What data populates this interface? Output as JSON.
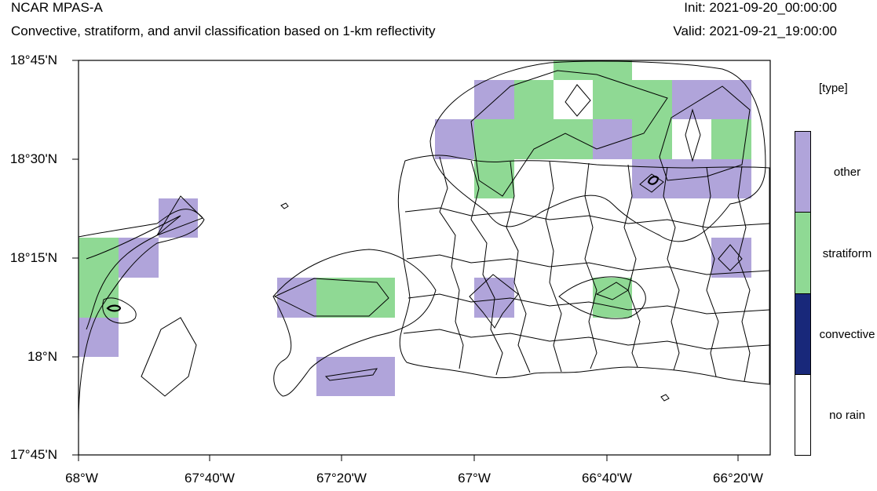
{
  "header": {
    "title": "NCAR MPAS-A",
    "subtitle": "Convective, stratiform, and anvil classification based on 1-km reflectivity",
    "init": "Init: 2021-09-20_00:00:00",
    "valid": "Valid: 2021-09-21_19:00:00"
  },
  "axes": {
    "y_ticks": [
      "18°45'N",
      "18°30'N",
      "18°15'N",
      "18°N",
      "17°45'N"
    ],
    "x_ticks": [
      "68°W",
      "67°40'W",
      "67°20'W",
      "67°W",
      "66°40'W",
      "66°20'W"
    ]
  },
  "legend": {
    "title": "[type]",
    "items": [
      {
        "label": "other",
        "color": "#b0a4da"
      },
      {
        "label": "stratiform",
        "color": "#8fd994"
      },
      {
        "label": "convective",
        "color": "#18287a"
      },
      {
        "label": "no rain",
        "color": "#ffffff"
      }
    ]
  },
  "colors": {
    "other": "#b0a4da",
    "stratiform": "#8fd994"
  }
}
